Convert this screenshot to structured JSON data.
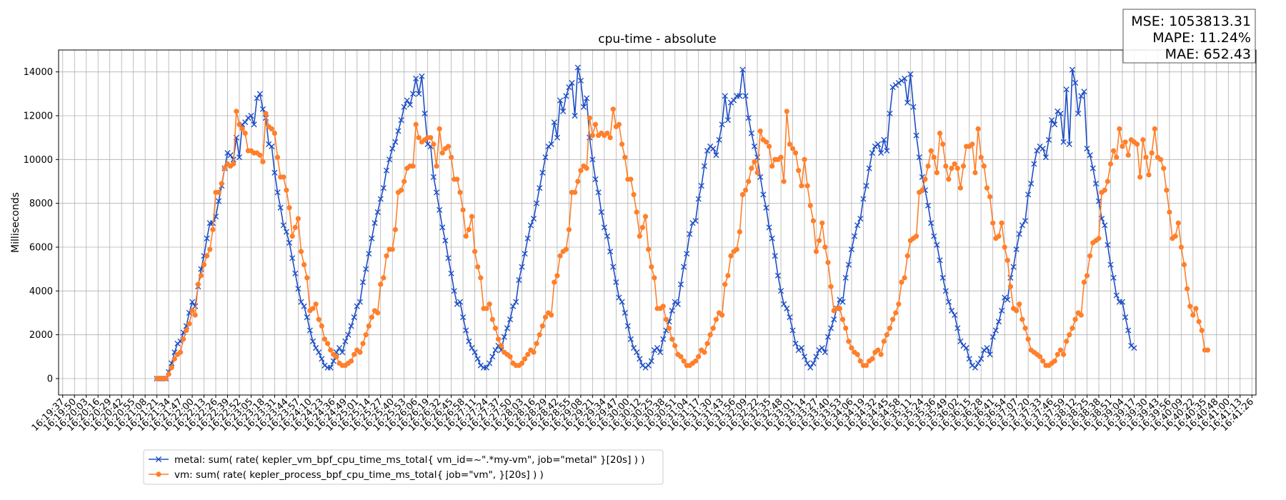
{
  "chart_data": {
    "type": "line",
    "title": "cpu-time - absolute",
    "xlabel": "",
    "ylabel": "Milliseconds",
    "ylim": [
      -750,
      15000
    ],
    "yticks": [
      0,
      2000,
      4000,
      6000,
      8000,
      10000,
      12000,
      14000
    ],
    "grid": true,
    "legend_position": "bottom-left",
    "x_tick_labels": [
      "16:19:37",
      "16:19:50",
      "16:20:03",
      "16:20:16",
      "16:20:29",
      "16:20:42",
      "16:20:55",
      "16:21:08",
      "16:21:21",
      "16:21:34",
      "16:21:47",
      "16:22:00",
      "16:22:13",
      "16:22:26",
      "16:22:39",
      "16:22:52",
      "16:23:05",
      "16:23:18",
      "16:23:31",
      "16:23:44",
      "16:23:57",
      "16:24:10",
      "16:24:23",
      "16:24:36",
      "16:24:49",
      "16:25:01",
      "16:25:14",
      "16:25:27",
      "16:25:40",
      "16:25:53",
      "16:26:06",
      "16:26:19",
      "16:26:32",
      "16:26:45",
      "16:26:58",
      "16:27:11",
      "16:27:24",
      "16:27:37",
      "16:27:50",
      "16:28:03",
      "16:28:16",
      "16:28:29",
      "16:28:42",
      "16:28:55",
      "16:29:08",
      "16:29:21",
      "16:29:34",
      "16:29:47",
      "16:30:00",
      "16:30:12",
      "16:30:25",
      "16:30:38",
      "16:30:51",
      "16:31:04",
      "16:31:17",
      "16:31:30",
      "16:31:43",
      "16:31:56",
      "16:32:09",
      "16:32:22",
      "16:32:35",
      "16:32:48",
      "16:33:01",
      "16:33:14",
      "16:33:27",
      "16:33:40",
      "16:33:53",
      "16:34:06",
      "16:34:19",
      "16:34:32",
      "16:34:45",
      "16:34:58",
      "16:35:11",
      "16:35:24",
      "16:35:36",
      "16:35:49",
      "16:36:02",
      "16:36:15",
      "16:36:28",
      "16:36:41",
      "16:36:54",
      "16:37:07",
      "16:37:20",
      "16:37:33",
      "16:37:46",
      "16:37:59",
      "16:38:12",
      "16:38:25",
      "16:38:38",
      "16:38:51",
      "16:39:04",
      "16:39:17",
      "16:39:30",
      "16:39:43",
      "16:39:56",
      "16:40:09",
      "16:40:22",
      "16:40:35",
      "16:40:48",
      "16:41:00",
      "16:41:13",
      "16:41:26"
    ],
    "x_tick_index": [
      0,
      1,
      2,
      3,
      4,
      5,
      6,
      7,
      8,
      9,
      10,
      11,
      12,
      13,
      14,
      15,
      16,
      17,
      18,
      19,
      20,
      21,
      22,
      23,
      24,
      25,
      26,
      27,
      28,
      29,
      30,
      31,
      32,
      33,
      34,
      35,
      36,
      37,
      38,
      39,
      40,
      41,
      42,
      43,
      44,
      45,
      46,
      47,
      48,
      49,
      50,
      51,
      52,
      53,
      54,
      55,
      56,
      57,
      58,
      59,
      60,
      61,
      62,
      63,
      64,
      65,
      66,
      67,
      68,
      69,
      70,
      71,
      72,
      73,
      74,
      75,
      76,
      77,
      78,
      79,
      80,
      81,
      82,
      83,
      84,
      85,
      86,
      87,
      88,
      89,
      90,
      91,
      92,
      93,
      94,
      95,
      96,
      97,
      98,
      99,
      100,
      101
    ],
    "series": [
      {
        "name": "metal: sum( rate( kepler_vm_bpf_cpu_time_ms_total{ vm_id=~\".*my-vm\", job=\"metal\" }[20s] ) )",
        "color": "#1f4fc6",
        "marker": "x",
        "x_start_index": 8,
        "x_step": 0.25,
        "values": [
          0,
          0,
          0,
          0,
          300,
          700,
          1200,
          1600,
          1700,
          2100,
          2400,
          3000,
          3500,
          3300,
          4200,
          5000,
          5600,
          6400,
          7100,
          7100,
          7400,
          8100,
          8800,
          9600,
          10300,
          10200,
          10000,
          11000,
          10100,
          11600,
          11700,
          11900,
          12000,
          11600,
          12800,
          13000,
          12300,
          11900,
          10700,
          10600,
          9400,
          8500,
          7800,
          7000,
          6700,
          6200,
          5500,
          4800,
          4100,
          3500,
          3300,
          2800,
          2200,
          1700,
          1400,
          1200,
          900,
          600,
          500,
          500,
          800,
          1200,
          1400,
          1200,
          1700,
          2000,
          2400,
          2800,
          3300,
          3500,
          4400,
          5000,
          5700,
          6400,
          7100,
          7600,
          8200,
          8700,
          9500,
          10000,
          10500,
          10800,
          11300,
          11800,
          12400,
          12700,
          12500,
          13000,
          13700,
          13000,
          13800,
          12100,
          10700,
          10600,
          9200,
          8500,
          7700,
          6900,
          6300,
          5500,
          4800,
          4000,
          3400,
          3500,
          2800,
          2200,
          1700,
          1400,
          1200,
          900,
          600,
          500,
          500,
          700,
          1000,
          1300,
          1500,
          1300,
          1900,
          2300,
          2700,
          3300,
          3500,
          4500,
          5100,
          5700,
          6400,
          7000,
          7300,
          8000,
          8700,
          9400,
          10100,
          10600,
          10700,
          11700,
          11000,
          12700,
          12200,
          12900,
          13300,
          13500,
          12000,
          14200,
          13600,
          12400,
          12800,
          11000,
          10000,
          9100,
          8500,
          7600,
          6900,
          6500,
          5800,
          5100,
          4400,
          3700,
          3500,
          3000,
          2400,
          1800,
          1400,
          1200,
          900,
          600,
          500,
          600,
          800,
          1300,
          1400,
          1200,
          1800,
          2200,
          2600,
          3100,
          3500,
          3400,
          4300,
          5100,
          5700,
          6600,
          7100,
          7200,
          8200,
          8800,
          9700,
          10400,
          10600,
          10500,
          10200,
          10900,
          11600,
          12900,
          11800,
          12600,
          12700,
          12900,
          12900,
          14100,
          12900,
          11900,
          11200,
          10600,
          10100,
          9200,
          8400,
          7800,
          6900,
          6400,
          5600,
          4700,
          4000,
          3400,
          3200,
          2800,
          2200,
          1600,
          1300,
          1400,
          1000,
          700,
          500,
          700,
          1000,
          1300,
          1400,
          1200,
          1900,
          2300,
          2700,
          3200,
          3600,
          3500,
          4600,
          5200,
          5900,
          6500,
          7000,
          7300,
          8200,
          8800,
          9600,
          10300,
          10600,
          10700,
          10300,
          10900,
          10400,
          12100,
          13300,
          13400,
          13500,
          13600,
          13700,
          12600,
          13900,
          12400,
          11100,
          10100,
          9200,
          8600,
          7900,
          7100,
          6500,
          6100,
          5400,
          4600,
          4000,
          3500,
          3100,
          2900,
          2300,
          1700,
          1500,
          1400,
          900,
          600,
          500,
          700,
          900,
          1300,
          1400,
          1100,
          1900,
          2200,
          2600,
          3100,
          3700,
          3600,
          4600,
          5100,
          5900,
          6600,
          7000,
          7200,
          8400,
          8900,
          9800,
          10400,
          10600,
          10500,
          10100,
          10900,
          11800,
          11600,
          12200,
          12100,
          10800,
          13200,
          10700,
          14100,
          13500,
          12100,
          12900,
          13100,
          10500,
          10200,
          9600,
          8900,
          8100,
          7300,
          7000,
          6100,
          5200,
          4600,
          3800,
          3500,
          3500,
          2800,
          2200,
          1500,
          1400
        ]
      },
      {
        "name": "vm: sum( rate( kepler_process_bpf_cpu_time_ms_total{ job=\"vm\", }[20s] ) )",
        "color": "#ff7f2a",
        "marker": "o",
        "x_start_index": 8,
        "x_step": 0.25,
        "values": [
          0,
          0,
          0,
          0,
          200,
          500,
          900,
          1100,
          1200,
          1800,
          2200,
          2500,
          3100,
          2900,
          4300,
          4700,
          5200,
          5600,
          5900,
          6800,
          8500,
          8500,
          8900,
          9600,
          9800,
          9700,
          9800,
          12200,
          11600,
          11400,
          11200,
          10400,
          10400,
          10300,
          10300,
          10200,
          9900,
          12100,
          11500,
          11400,
          11200,
          10100,
          9200,
          9200,
          8600,
          7800,
          6500,
          6900,
          7300,
          5800,
          5200,
          4600,
          3100,
          3200,
          3400,
          2700,
          2400,
          1800,
          1600,
          1300,
          1100,
          1000,
          700,
          600,
          600,
          700,
          800,
          1100,
          1300,
          1200,
          1600,
          2000,
          2400,
          2800,
          3100,
          3000,
          4300,
          4600,
          5600,
          5900,
          5900,
          6800,
          8500,
          8600,
          9000,
          9600,
          9700,
          9700,
          11600,
          11000,
          10800,
          10900,
          11000,
          11000,
          10700,
          9700,
          11400,
          10300,
          10500,
          10600,
          10100,
          9100,
          9100,
          8500,
          7700,
          6500,
          6800,
          7400,
          5800,
          5100,
          4600,
          3200,
          3200,
          3400,
          2700,
          2300,
          1800,
          1500,
          1200,
          1100,
          1000,
          700,
          600,
          600,
          700,
          900,
          1100,
          1300,
          1200,
          1600,
          2000,
          2400,
          2800,
          3000,
          2900,
          4400,
          4700,
          5600,
          5800,
          5900,
          6800,
          8500,
          8500,
          9000,
          9500,
          9700,
          9600,
          11900,
          11100,
          11600,
          11100,
          11200,
          11100,
          11200,
          11000,
          12300,
          11500,
          11600,
          10700,
          10100,
          9100,
          9100,
          8400,
          7600,
          6500,
          6900,
          7400,
          5900,
          5100,
          4600,
          3200,
          3200,
          3300,
          2700,
          2300,
          1800,
          1500,
          1100,
          1000,
          800,
          600,
          600,
          700,
          800,
          1000,
          1300,
          1200,
          1600,
          2000,
          2300,
          2700,
          3000,
          2900,
          4300,
          4700,
          5600,
          5800,
          5900,
          6700,
          8400,
          8600,
          9000,
          9600,
          9900,
          9400,
          11300,
          10900,
          10800,
          10600,
          9700,
          10000,
          10000,
          10100,
          9000,
          12200,
          10700,
          10500,
          10300,
          9500,
          8800,
          10000,
          8800,
          7900,
          7200,
          5800,
          6300,
          7100,
          6000,
          5300,
          4200,
          3100,
          3200,
          3200,
          2700,
          2300,
          1700,
          1400,
          1200,
          1100,
          800,
          600,
          600,
          800,
          900,
          1200,
          1300,
          1100,
          1700,
          2000,
          2300,
          2700,
          3000,
          3400,
          4400,
          4600,
          5600,
          6300,
          6400,
          6500,
          8500,
          8600,
          9100,
          9700,
          10400,
          10100,
          9400,
          11200,
          10700,
          9700,
          9100,
          9600,
          9800,
          9600,
          8700,
          9700,
          10600,
          10600,
          10700,
          9400,
          11400,
          10100,
          9700,
          8700,
          8300,
          7100,
          6400,
          6500,
          7100,
          6000,
          5400,
          4200,
          3200,
          3100,
          3400,
          2700,
          2300,
          1800,
          1300,
          1200,
          1100,
          1000,
          800,
          600,
          600,
          700,
          800,
          1100,
          1300,
          1100,
          1700,
          2000,
          2300,
          2700,
          3000,
          2900,
          4400,
          4700,
          5600,
          6200,
          6300,
          6400,
          8500,
          8600,
          9000,
          9800,
          10400,
          10100,
          11400,
          10600,
          10800,
          10200,
          10900,
          10800,
          10700,
          9200,
          10900,
          10100,
          9300,
          10300,
          11400,
          10100,
          10000,
          9600,
          8600,
          7600,
          6400,
          6500,
          7100,
          6000,
          5200,
          4100,
          3300,
          2900,
          3200,
          2600,
          2200,
          1300,
          1300
        ]
      }
    ]
  },
  "metrics_box": {
    "mse": "MSE: 1053813.31",
    "mape": "MAPE: 11.24%",
    "mae": "MAE: 652.43"
  },
  "legend": {
    "metal_label": "metal: sum( rate( kepler_vm_bpf_cpu_time_ms_total{ vm_id=~\".*my-vm\", job=\"metal\" }[20s] ) )",
    "vm_label": "vm: sum( rate( kepler_process_bpf_cpu_time_ms_total{ job=\"vm\", }[20s] ) )"
  }
}
